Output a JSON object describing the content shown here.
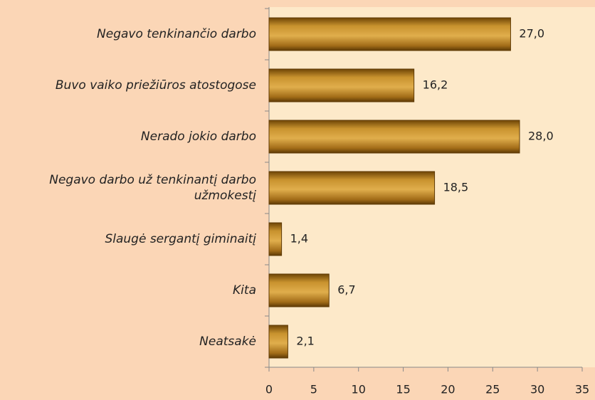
{
  "chart_data": {
    "type": "barh",
    "categories": [
      "Negavo tenkinančio darbo",
      "Buvo vaiko priežiūros atostogose",
      "Nerado jokio darbo",
      "Negavo darbo už tenkinantį darbo užmokestį",
      "Slaugė sergantį giminaitį",
      "Kita",
      "Neatsakė"
    ],
    "values": [
      27.0,
      16.2,
      28.0,
      18.5,
      1.4,
      6.7,
      2.1
    ],
    "value_labels": [
      "27,0",
      "16,2",
      "28,0",
      "18,5",
      "1,4",
      "6,7",
      "2,1"
    ],
    "color": "#b07a1e",
    "xlim": [
      0,
      35
    ],
    "xticks": [
      0,
      5,
      10,
      15,
      20,
      25,
      30,
      35
    ]
  }
}
